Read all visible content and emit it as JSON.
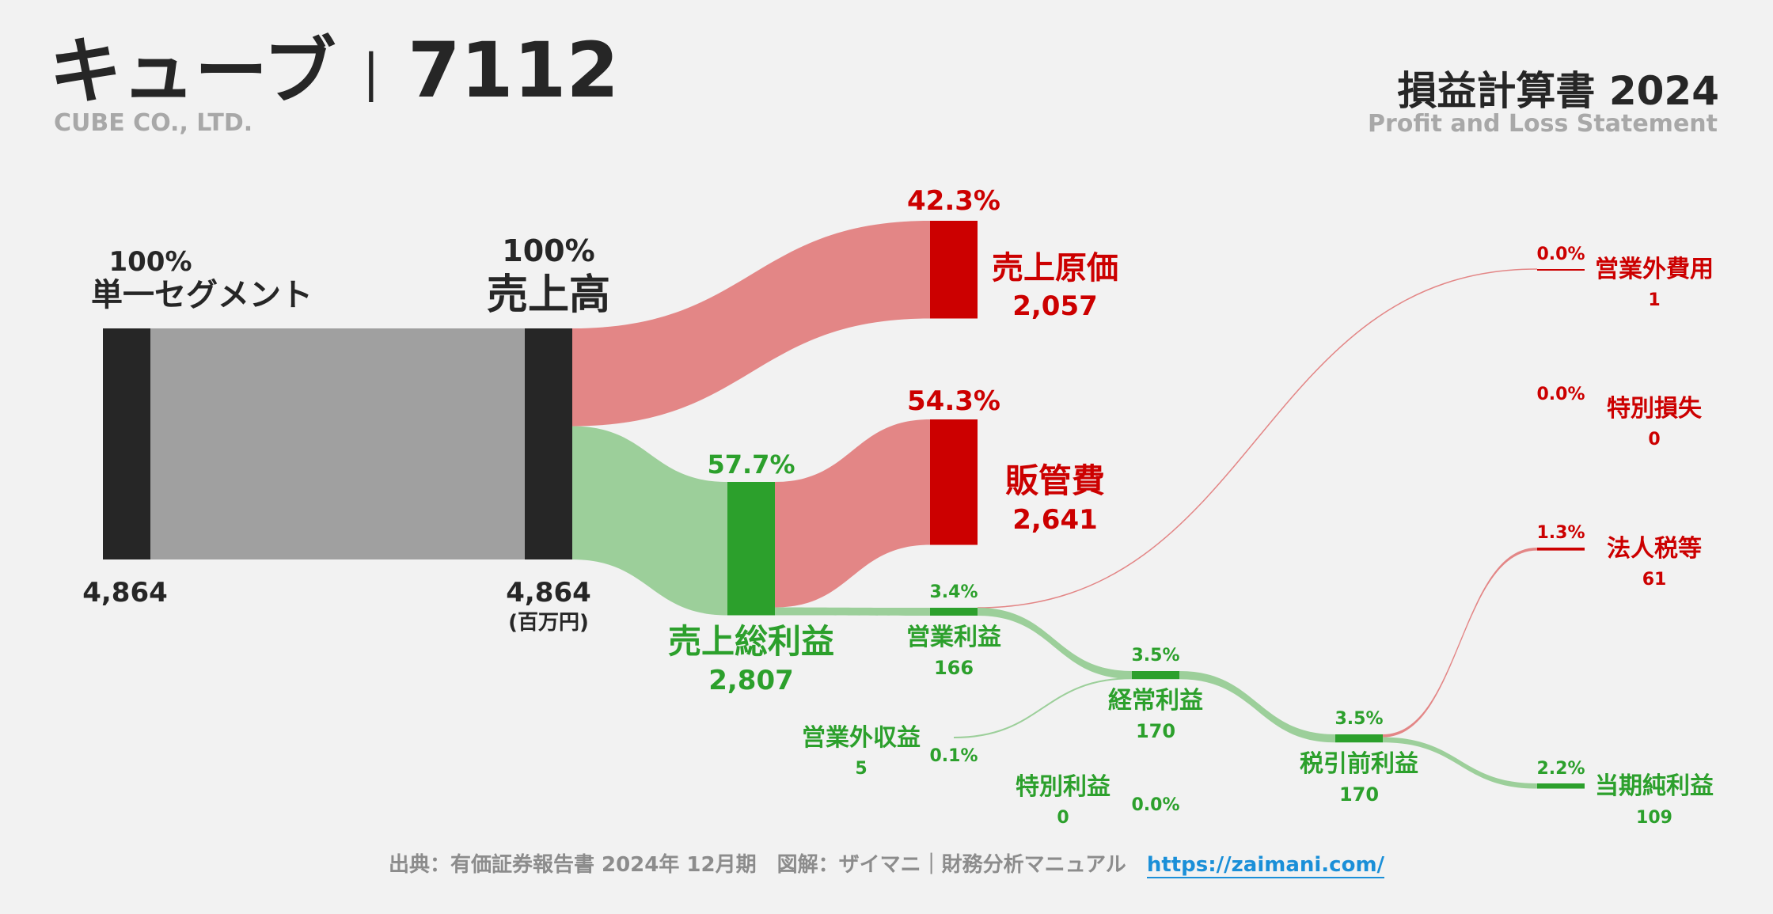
{
  "header": {
    "company_name": "キューブ",
    "separator": "|",
    "ticker": "7112",
    "company_en": "CUBE CO., LTD.",
    "statement_title": "損益計算書 2024",
    "statement_en": "Profit and Loss Statement"
  },
  "footer": {
    "source": "出典：有価証券報告書 2024年 12月期　図解：ザイマニ｜財務分析マニュアル",
    "link_text": "https://zaimani.com/"
  },
  "colors": {
    "dark": "#262626",
    "gray_flow": "#a0a0a0",
    "red": "#cc0000",
    "red_flow": "#e38686",
    "green": "#2ca02c",
    "green_flow": "#9ccf9a",
    "background": "#f2f2f2"
  },
  "chart_data": {
    "type": "sankey",
    "unit": "(百万円)",
    "nodes": [
      {
        "id": "segment",
        "label": "単一セグメント",
        "value": 4864,
        "value_text": "4,864",
        "pct": "100%"
      },
      {
        "id": "revenue",
        "label": "売上高",
        "value": 4864,
        "value_text": "4,864",
        "pct": "100%"
      },
      {
        "id": "cogs",
        "label": "売上原価",
        "value": 2057,
        "value_text": "2,057",
        "pct": "42.3%"
      },
      {
        "id": "gross_profit",
        "label": "売上総利益",
        "value": 2807,
        "value_text": "2,807",
        "pct": "57.7%"
      },
      {
        "id": "sga",
        "label": "販管費",
        "value": 2641,
        "value_text": "2,641",
        "pct": "54.3%"
      },
      {
        "id": "operating_profit",
        "label": "営業利益",
        "value": 166,
        "value_text": "166",
        "pct": "3.4%"
      },
      {
        "id": "non_op_expense",
        "label": "営業外費用",
        "value": 1,
        "value_text": "1",
        "pct": "0.0%"
      },
      {
        "id": "non_op_income",
        "label": "営業外収益",
        "value": 5,
        "value_text": "5",
        "pct": "0.1%"
      },
      {
        "id": "ordinary_profit",
        "label": "経常利益",
        "value": 170,
        "value_text": "170",
        "pct": "3.5%"
      },
      {
        "id": "extra_loss",
        "label": "特別損失",
        "value": 0,
        "value_text": "0",
        "pct": "0.0%"
      },
      {
        "id": "extra_income",
        "label": "特別利益",
        "value": 0,
        "value_text": "0",
        "pct": "0.0%"
      },
      {
        "id": "pretax_profit",
        "label": "税引前利益",
        "value": 170,
        "value_text": "170",
        "pct": "3.5%"
      },
      {
        "id": "taxes",
        "label": "法人税等",
        "value": 61,
        "value_text": "61",
        "pct": "1.3%"
      },
      {
        "id": "net_income",
        "label": "当期純利益",
        "value": 109,
        "value_text": "109",
        "pct": "2.2%"
      }
    ],
    "links": [
      {
        "source": "segment",
        "target": "revenue",
        "value": 4864
      },
      {
        "source": "revenue",
        "target": "cogs",
        "value": 2057
      },
      {
        "source": "revenue",
        "target": "gross_profit",
        "value": 2807
      },
      {
        "source": "gross_profit",
        "target": "sga",
        "value": 2641
      },
      {
        "source": "gross_profit",
        "target": "operating_profit",
        "value": 166
      },
      {
        "source": "operating_profit",
        "target": "non_op_expense",
        "value": 1
      },
      {
        "source": "operating_profit",
        "target": "ordinary_profit",
        "value": 166
      },
      {
        "source": "non_op_income",
        "target": "ordinary_profit",
        "value": 5
      },
      {
        "source": "ordinary_profit",
        "target": "pretax_profit",
        "value": 170
      },
      {
        "source": "pretax_profit",
        "target": "taxes",
        "value": 61
      },
      {
        "source": "pretax_profit",
        "target": "net_income",
        "value": 109
      }
    ]
  }
}
